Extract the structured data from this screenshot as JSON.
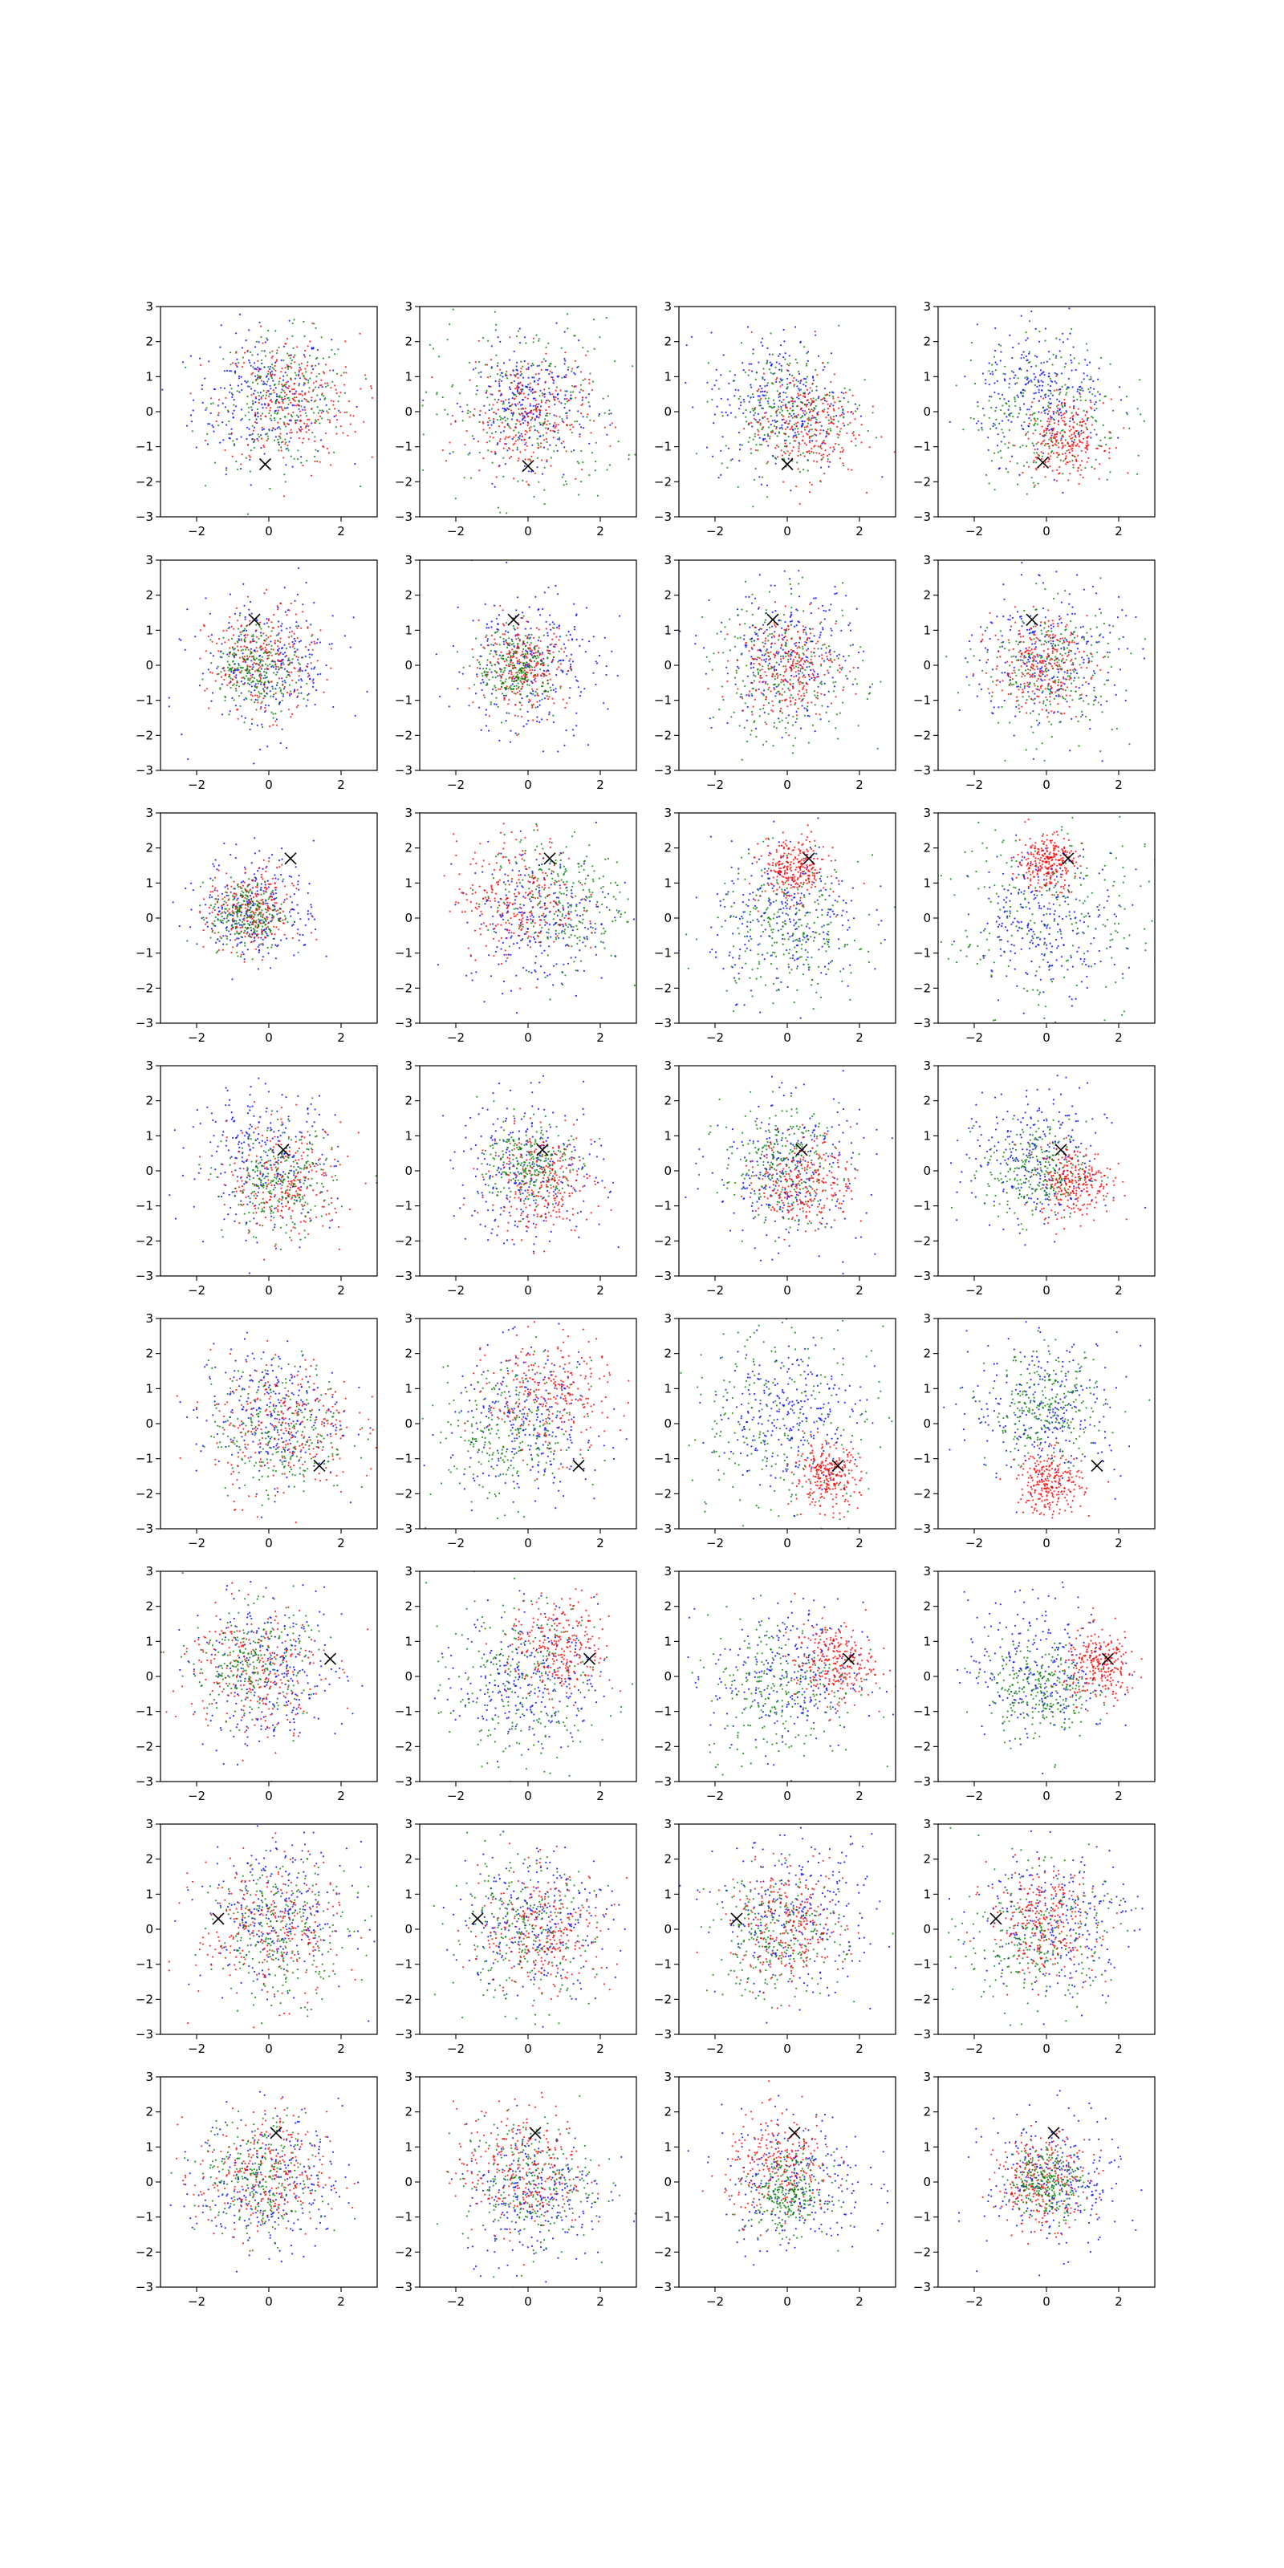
{
  "chart_data": {
    "type": "scatter",
    "layout": {
      "rows": 8,
      "cols": 4
    },
    "title": "",
    "xlabel": "",
    "ylabel": "",
    "xlim": [
      -3,
      3
    ],
    "ylim": [
      -3,
      3
    ],
    "xticks": [
      -2,
      0,
      2
    ],
    "xtick_labels": [
      "−2",
      "0",
      "2"
    ],
    "yticks": [
      -3,
      -2,
      -1,
      0,
      1,
      2,
      3
    ],
    "ytick_labels": [
      "−3",
      "−2",
      "−1",
      "0",
      "1",
      "2",
      "3"
    ],
    "grid": false,
    "legend": "none",
    "marker_color": "#000000",
    "series_colors": {
      "blue": "#0000ff",
      "green": "#008000",
      "red": "#ff0000"
    },
    "points_per_series_drawn": 260,
    "panels": [
      {
        "marker": [
          -0.1,
          -1.5
        ],
        "series": [
          {
            "color": "blue",
            "cx": -0.2,
            "cy": 0.4,
            "s": 0.95
          },
          {
            "color": "green",
            "cx": 0.4,
            "cy": 0.3,
            "s": 0.95
          },
          {
            "color": "red",
            "cx": 0.6,
            "cy": 0.3,
            "s": 0.95
          }
        ]
      },
      {
        "marker": [
          0,
          -1.55
        ],
        "series": [
          {
            "color": "green",
            "cx": 0,
            "cy": 0,
            "s": 1.3
          },
          {
            "color": "blue",
            "cx": 0.1,
            "cy": 0.2,
            "s": 0.8
          },
          {
            "color": "red",
            "cx": -0.1,
            "cy": -0.1,
            "s": 0.85
          }
        ]
      },
      {
        "marker": [
          0,
          -1.5
        ],
        "series": [
          {
            "color": "blue",
            "cx": -0.2,
            "cy": 0.3,
            "s": 1
          },
          {
            "color": "green",
            "cx": 0,
            "cy": 0,
            "s": 0.9
          },
          {
            "color": "red",
            "cx": 0.5,
            "cy": -0.4,
            "s": 0.75
          }
        ]
      },
      {
        "marker": [
          -0.1,
          -1.45
        ],
        "series": [
          {
            "color": "green",
            "cx": 0,
            "cy": 0,
            "s": 1.05
          },
          {
            "color": "blue",
            "cx": -0.1,
            "cy": 0.5,
            "s": 0.9
          },
          {
            "color": "red",
            "cx": 0.5,
            "cy": -0.8,
            "s": 0.55
          }
        ]
      },
      {
        "marker": [
          -0.4,
          1.3
        ],
        "series": [
          {
            "color": "blue",
            "cx": 0,
            "cy": 0,
            "s": 1
          },
          {
            "color": "red",
            "cx": -0.2,
            "cy": 0.1,
            "s": 0.75
          },
          {
            "color": "green",
            "cx": -0.3,
            "cy": 0,
            "s": 0.6
          }
        ]
      },
      {
        "marker": [
          -0.4,
          1.3
        ],
        "series": [
          {
            "color": "blue",
            "cx": 0,
            "cy": 0,
            "s": 1.05
          },
          {
            "color": "red",
            "cx": -0.1,
            "cy": 0,
            "s": 0.6
          },
          {
            "color": "green",
            "cx": -0.3,
            "cy": -0.1,
            "s": 0.55
          }
        ]
      },
      {
        "marker": [
          -0.4,
          1.3
        ],
        "series": [
          {
            "color": "blue",
            "cx": 0,
            "cy": 0.2,
            "s": 1
          },
          {
            "color": "green",
            "cx": 0,
            "cy": -0.2,
            "s": 1.05
          },
          {
            "color": "red",
            "cx": 0,
            "cy": 0,
            "s": 0.7
          }
        ]
      },
      {
        "marker": [
          -0.4,
          1.3
        ],
        "series": [
          {
            "color": "blue",
            "cx": 0,
            "cy": 0.2,
            "s": 1.05
          },
          {
            "color": "green",
            "cx": 0.1,
            "cy": -0.1,
            "s": 0.95
          },
          {
            "color": "red",
            "cx": -0.2,
            "cy": 0,
            "s": 0.65
          }
        ]
      },
      {
        "marker": [
          0.6,
          1.7
        ],
        "series": [
          {
            "color": "blue",
            "cx": -0.3,
            "cy": 0.3,
            "s": 0.8
          },
          {
            "color": "red",
            "cx": -0.5,
            "cy": 0.2,
            "s": 0.6
          },
          {
            "color": "green",
            "cx": -0.6,
            "cy": 0.1,
            "s": 0.5
          }
        ]
      },
      {
        "marker": [
          0.6,
          1.7
        ],
        "series": [
          {
            "color": "blue",
            "cx": 0.3,
            "cy": 0,
            "s": 1
          },
          {
            "color": "green",
            "cx": 0.8,
            "cy": 0.5,
            "s": 0.95
          },
          {
            "color": "red",
            "cx": -0.3,
            "cy": 0.6,
            "s": 0.85
          }
        ]
      },
      {
        "marker": [
          0.6,
          1.7
        ],
        "series": [
          {
            "color": "blue",
            "cx": 0,
            "cy": 0,
            "s": 1.05
          },
          {
            "color": "green",
            "cx": 0,
            "cy": -0.3,
            "s": 1
          },
          {
            "color": "red",
            "cx": 0.2,
            "cy": 1.4,
            "s": 0.45
          }
        ]
      },
      {
        "marker": [
          0.6,
          1.7
        ],
        "series": [
          {
            "color": "green",
            "cx": 0,
            "cy": 0,
            "s": 1.6
          },
          {
            "color": "blue",
            "cx": 0,
            "cy": 0,
            "s": 1
          },
          {
            "color": "red",
            "cx": 0,
            "cy": 1.6,
            "s": 0.4
          }
        ]
      },
      {
        "marker": [
          0.4,
          0.6
        ],
        "series": [
          {
            "color": "blue",
            "cx": -0.2,
            "cy": 0.4,
            "s": 1
          },
          {
            "color": "red",
            "cx": 0.5,
            "cy": -0.3,
            "s": 0.8
          },
          {
            "color": "green",
            "cx": 0.3,
            "cy": -0.4,
            "s": 0.75
          }
        ]
      },
      {
        "marker": [
          0.4,
          0.6
        ],
        "series": [
          {
            "color": "blue",
            "cx": 0,
            "cy": 0,
            "s": 1.05
          },
          {
            "color": "red",
            "cx": 0.4,
            "cy": -0.3,
            "s": 0.7
          },
          {
            "color": "green",
            "cx": 0,
            "cy": 0.2,
            "s": 0.6
          }
        ]
      },
      {
        "marker": [
          0.4,
          0.6
        ],
        "series": [
          {
            "color": "blue",
            "cx": 0,
            "cy": 0,
            "s": 1.05
          },
          {
            "color": "green",
            "cx": -0.2,
            "cy": 0.2,
            "s": 0.8
          },
          {
            "color": "red",
            "cx": 0.5,
            "cy": -0.3,
            "s": 0.65
          }
        ]
      },
      {
        "marker": [
          0.4,
          0.6
        ],
        "series": [
          {
            "color": "blue",
            "cx": -0.3,
            "cy": 0.3,
            "s": 1
          },
          {
            "color": "green",
            "cx": -0.3,
            "cy": 0,
            "s": 0.7
          },
          {
            "color": "red",
            "cx": 0.8,
            "cy": -0.3,
            "s": 0.5
          }
        ]
      },
      {
        "marker": [
          1.4,
          -1.2
        ],
        "series": [
          {
            "color": "blue",
            "cx": 0,
            "cy": 0.3,
            "s": 1
          },
          {
            "color": "green",
            "cx": 0.3,
            "cy": -0.2,
            "s": 0.95
          },
          {
            "color": "red",
            "cx": 0.4,
            "cy": -0.1,
            "s": 1
          }
        ]
      },
      {
        "marker": [
          1.4,
          -1.2
        ],
        "series": [
          {
            "color": "blue",
            "cx": 0,
            "cy": 0,
            "s": 1.05
          },
          {
            "color": "green",
            "cx": -0.6,
            "cy": -0.3,
            "s": 1
          },
          {
            "color": "red",
            "cx": 0.6,
            "cy": 0.8,
            "s": 0.85
          }
        ]
      },
      {
        "marker": [
          1.4,
          -1.2
        ],
        "series": [
          {
            "color": "green",
            "cx": 0,
            "cy": 0,
            "s": 1.5
          },
          {
            "color": "blue",
            "cx": 0,
            "cy": 0.3,
            "s": 1
          },
          {
            "color": "red",
            "cx": 1.1,
            "cy": -1.5,
            "s": 0.45
          }
        ]
      },
      {
        "marker": [
          1.4,
          -1.2
        ],
        "series": [
          {
            "color": "blue",
            "cx": 0,
            "cy": 0.4,
            "s": 1.05
          },
          {
            "color": "green",
            "cx": 0,
            "cy": 0.4,
            "s": 0.8
          },
          {
            "color": "red",
            "cx": 0.1,
            "cy": -1.7,
            "s": 0.45
          }
        ]
      },
      {
        "marker": [
          1.7,
          0.5
        ],
        "series": [
          {
            "color": "blue",
            "cx": 0,
            "cy": 0,
            "s": 1.05
          },
          {
            "color": "red",
            "cx": -0.4,
            "cy": 0.2,
            "s": 0.95
          },
          {
            "color": "green",
            "cx": -0.5,
            "cy": 0.4,
            "s": 0.8
          }
        ]
      },
      {
        "marker": [
          1.7,
          0.5
        ],
        "series": [
          {
            "color": "green",
            "cx": -0.2,
            "cy": -0.2,
            "s": 1.25
          },
          {
            "color": "blue",
            "cx": 0,
            "cy": 0,
            "s": 0.95
          },
          {
            "color": "red",
            "cx": 0.9,
            "cy": 0.8,
            "s": 0.7
          }
        ]
      },
      {
        "marker": [
          1.7,
          0.5
        ],
        "series": [
          {
            "color": "blue",
            "cx": 0,
            "cy": 0,
            "s": 1.05
          },
          {
            "color": "green",
            "cx": -0.2,
            "cy": -0.3,
            "s": 1.05
          },
          {
            "color": "red",
            "cx": 1.3,
            "cy": 0.4,
            "s": 0.55
          }
        ]
      },
      {
        "marker": [
          1.7,
          0.5
        ],
        "series": [
          {
            "color": "blue",
            "cx": -0.2,
            "cy": 0.3,
            "s": 1
          },
          {
            "color": "green",
            "cx": -0.2,
            "cy": -0.4,
            "s": 0.7
          },
          {
            "color": "red",
            "cx": 1.5,
            "cy": 0.3,
            "s": 0.5
          }
        ]
      },
      {
        "marker": [
          -1.4,
          0.3
        ],
        "series": [
          {
            "color": "blue",
            "cx": 0.2,
            "cy": 0.4,
            "s": 1
          },
          {
            "color": "red",
            "cx": 0,
            "cy": 0,
            "s": 1
          },
          {
            "color": "green",
            "cx": 0.4,
            "cy": -0.1,
            "s": 0.95
          }
        ]
      },
      {
        "marker": [
          -1.4,
          0.3
        ],
        "series": [
          {
            "color": "blue",
            "cx": 0.2,
            "cy": 0.3,
            "s": 1.05
          },
          {
            "color": "green",
            "cx": -0.2,
            "cy": -0.1,
            "s": 1
          },
          {
            "color": "red",
            "cx": 0.5,
            "cy": -0.1,
            "s": 0.9
          }
        ]
      },
      {
        "marker": [
          -1.4,
          0.3
        ],
        "series": [
          {
            "color": "blue",
            "cx": 0.3,
            "cy": 0.4,
            "s": 1.1
          },
          {
            "color": "green",
            "cx": -0.3,
            "cy": -0.2,
            "s": 0.9
          },
          {
            "color": "red",
            "cx": 0,
            "cy": 0.1,
            "s": 0.8
          }
        ]
      },
      {
        "marker": [
          -1.4,
          0.3
        ],
        "series": [
          {
            "color": "blue",
            "cx": 0.3,
            "cy": 0.3,
            "s": 1.1
          },
          {
            "color": "green",
            "cx": -0.3,
            "cy": -0.3,
            "s": 1
          },
          {
            "color": "red",
            "cx": -0.1,
            "cy": 0.2,
            "s": 0.75
          }
        ]
      },
      {
        "marker": [
          0.2,
          1.4
        ],
        "series": [
          {
            "color": "blue",
            "cx": 0,
            "cy": 0,
            "s": 1
          },
          {
            "color": "green",
            "cx": -0.2,
            "cy": 0.1,
            "s": 0.85
          },
          {
            "color": "red",
            "cx": -0.2,
            "cy": 0.2,
            "s": 0.9
          }
        ]
      },
      {
        "marker": [
          0.2,
          1.4
        ],
        "series": [
          {
            "color": "blue",
            "cx": 0.2,
            "cy": -0.3,
            "s": 1
          },
          {
            "color": "green",
            "cx": 0,
            "cy": 0,
            "s": 0.9
          },
          {
            "color": "red",
            "cx": -0.2,
            "cy": 0.4,
            "s": 0.9
          }
        ]
      },
      {
        "marker": [
          0.2,
          1.4
        ],
        "series": [
          {
            "color": "blue",
            "cx": 0.2,
            "cy": 0,
            "s": 1
          },
          {
            "color": "red",
            "cx": -0.2,
            "cy": 0.4,
            "s": 0.75
          },
          {
            "color": "green",
            "cx": 0,
            "cy": -0.3,
            "s": 0.55
          }
        ]
      },
      {
        "marker": [
          0.2,
          1.4
        ],
        "series": [
          {
            "color": "blue",
            "cx": 0.2,
            "cy": 0,
            "s": 0.95
          },
          {
            "color": "red",
            "cx": -0.1,
            "cy": 0,
            "s": 0.65
          },
          {
            "color": "green",
            "cx": 0,
            "cy": 0,
            "s": 0.5
          }
        ]
      }
    ]
  }
}
